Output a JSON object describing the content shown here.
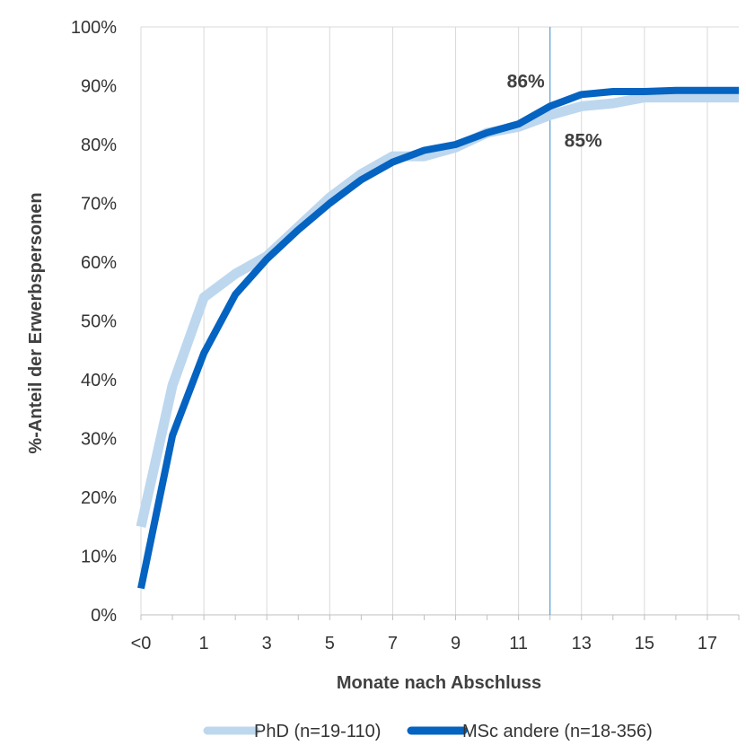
{
  "chart_data": {
    "type": "line",
    "xlabel": "Monate nach Abschluss",
    "ylabel": "%-Anteil der Erwerbspersonen",
    "x_categories": [
      "<0",
      "0",
      "1",
      "2",
      "3",
      "4",
      "5",
      "6",
      "7",
      "8",
      "9",
      "10",
      "11",
      "12",
      "13",
      "14",
      "15",
      "16",
      "17",
      "18"
    ],
    "x_tick_labels": [
      "<0",
      "1",
      "3",
      "5",
      "7",
      "9",
      "11",
      "13",
      "15",
      "17"
    ],
    "y_ticks": [
      0,
      10,
      20,
      30,
      40,
      50,
      60,
      70,
      80,
      90,
      100
    ],
    "y_tick_labels": [
      "0%",
      "10%",
      "20%",
      "30%",
      "40%",
      "50%",
      "60%",
      "70%",
      "80%",
      "90%",
      "100%"
    ],
    "ylim": [
      0,
      100
    ],
    "grid": "vertical lines at odd months",
    "reference_line_x": "12",
    "series": [
      {
        "name": "PhD (n=19-110)",
        "color": "#bdd7ee",
        "values": [
          15,
          39,
          54,
          58,
          61,
          66,
          71,
          75,
          78,
          78,
          79.5,
          82,
          83,
          85,
          86.5,
          87,
          88,
          88,
          88,
          88
        ]
      },
      {
        "name": "MSc andere (n=18-356)",
        "color": "#0563c1",
        "values": [
          4.5,
          30.5,
          44.5,
          54.5,
          60.5,
          65.5,
          70,
          74,
          77,
          79,
          80,
          82,
          83.5,
          86.5,
          88.5,
          89,
          89,
          89.2,
          89.2,
          89.2
        ]
      }
    ],
    "annotations": [
      {
        "text": "86%",
        "series": "MSc andere (n=18-356)",
        "x": "12",
        "position": "above"
      },
      {
        "text": "85%",
        "series": "PhD (n=19-110)",
        "x": "12",
        "position": "below"
      }
    ],
    "legend": {
      "placement": "bottom"
    }
  }
}
